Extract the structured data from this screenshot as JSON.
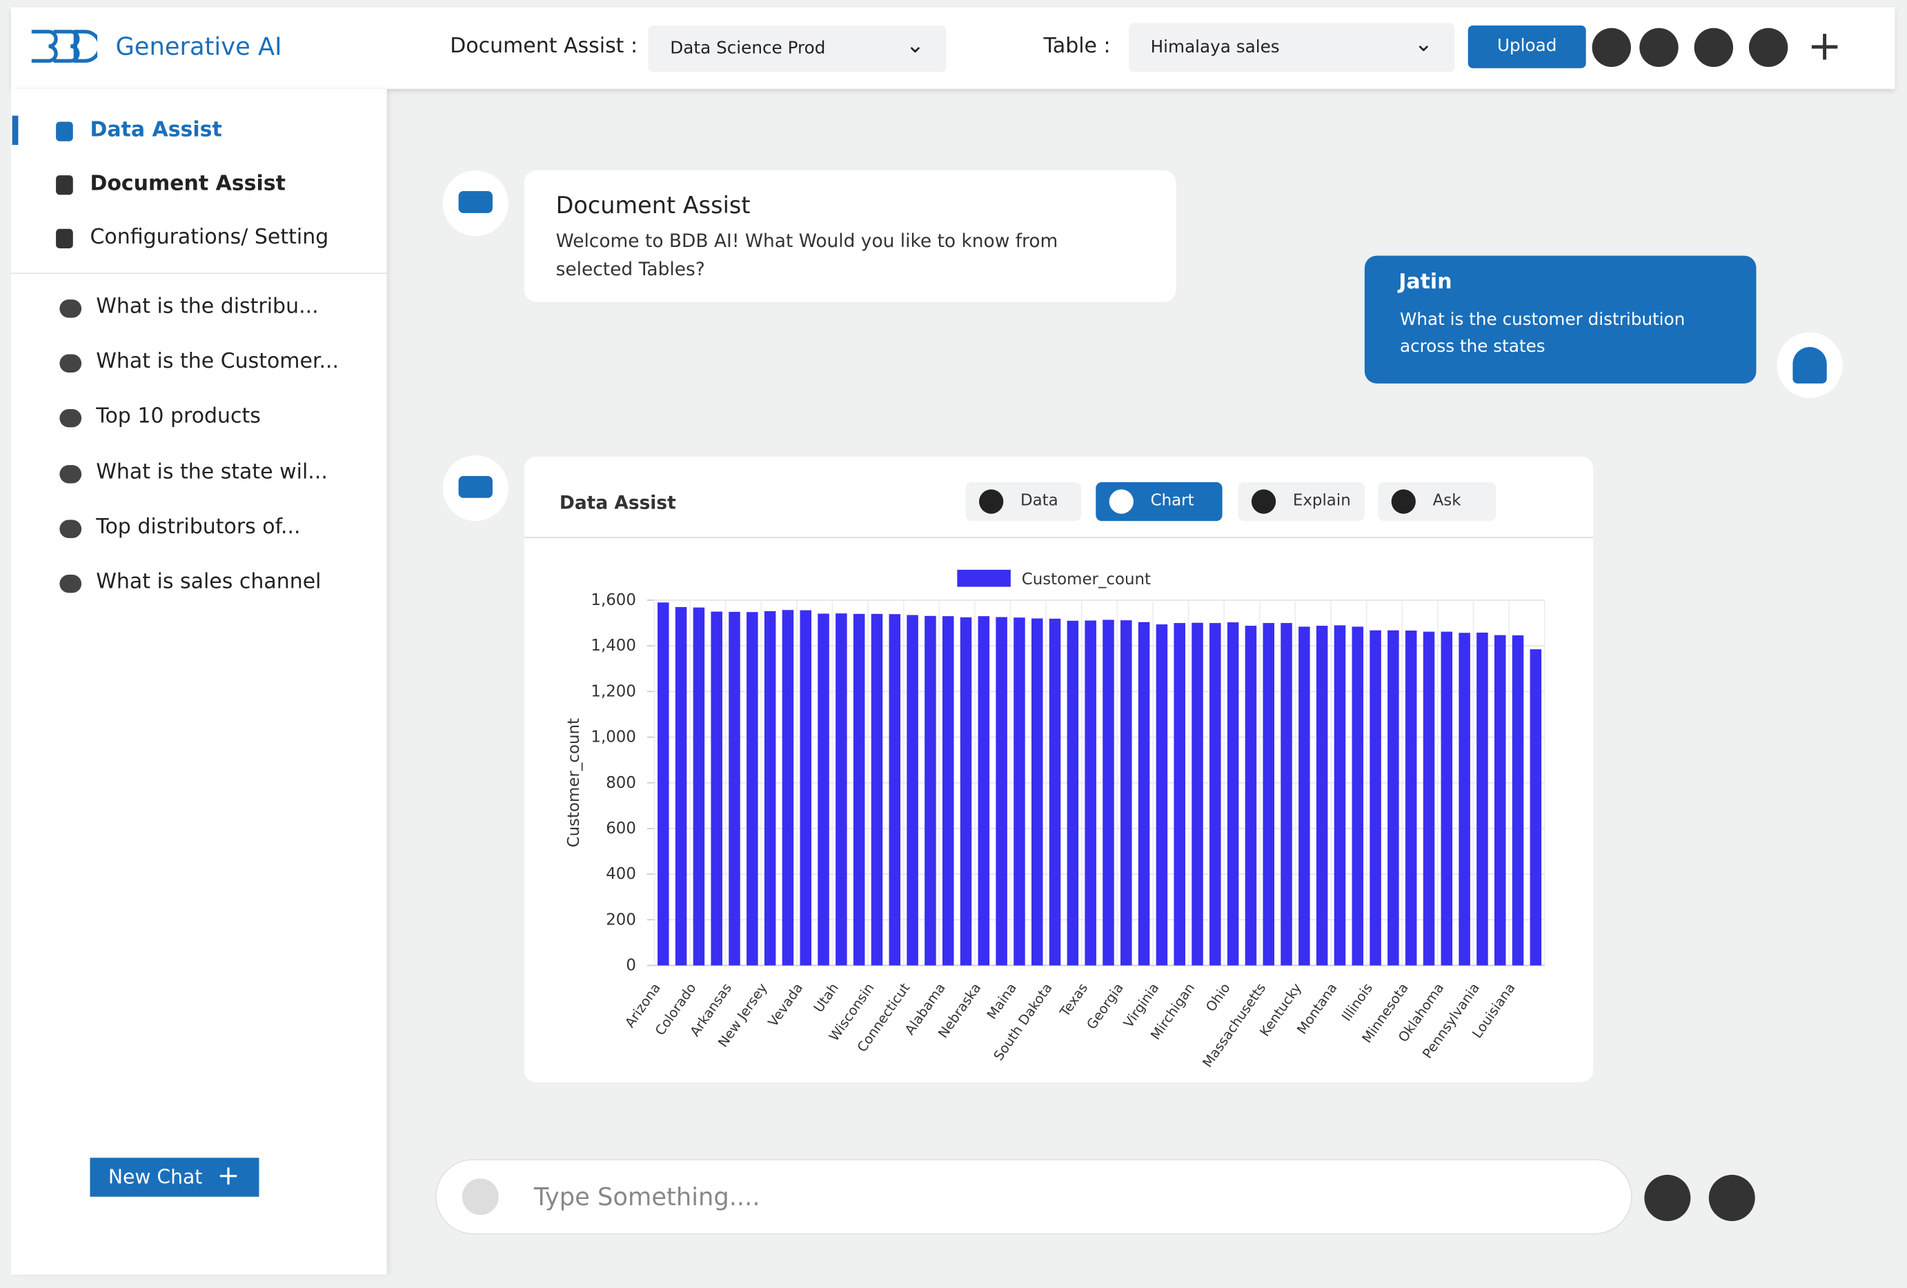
{
  "header": {
    "brand": "Generative AI",
    "document_label": "Document Assist :",
    "document_select": "Data Science Prod",
    "table_label": "Table :",
    "table_select": "Himalaya sales",
    "upload": "Upload"
  },
  "sidebar": {
    "nav": [
      "Data Assist",
      "Document Assist",
      "Configurations/ Setting"
    ],
    "history": [
      "What is the distribu...",
      "What is the Customer...",
      "Top 10 products",
      "What is the state wil...",
      "Top distributors of...",
      "What is sales channel"
    ],
    "new_chat": "New Chat"
  },
  "chat": {
    "bot_title": "Document Assist",
    "bot_text": "Welcome to BDB AI! What Would you like to know from selected Tables?",
    "user_name": "Jatin",
    "user_text": "What is the customer distribution across the states",
    "card_title": "Data Assist",
    "tabs": [
      "Data",
      "Chart",
      "Explain",
      "Ask"
    ],
    "input_placeholder": "Type Something...."
  },
  "chart_data": {
    "type": "bar",
    "y_label": "Customer_count",
    "categories": [
      "Arizona",
      null,
      "Colorado",
      null,
      "Arkansas",
      null,
      "New Jersey",
      null,
      "Vevada",
      null,
      "Utah",
      null,
      "Wisconsin",
      null,
      "Connecticut",
      null,
      "Alabama",
      null,
      "Nebraska",
      null,
      "Maina",
      null,
      "South Dakota",
      null,
      "Texas",
      null,
      "Georgia",
      null,
      "Virginia",
      null,
      "Mirchigan",
      null,
      "Ohio",
      null,
      "Massachusetts",
      null,
      "Kentucky",
      null,
      "Montana",
      null,
      "Illinois",
      null,
      "Minnesota",
      null,
      "Oklahoma",
      null,
      "Pennsylvania",
      null,
      "Louisiana",
      null
    ],
    "series": [
      {
        "name": "Customer_count",
        "color": "#3a2ef2",
        "values": [
          1590,
          1570,
          1568,
          1550,
          1549,
          1548,
          1552,
          1557,
          1556,
          1541,
          1542,
          1540,
          1540,
          1539,
          1535,
          1531,
          1530,
          1525,
          1530,
          1526,
          1524,
          1520,
          1519,
          1510,
          1511,
          1514,
          1512,
          1504,
          1494,
          1500,
          1501,
          1500,
          1503,
          1488,
          1500,
          1500,
          1484,
          1488,
          1490,
          1484,
          1468,
          1468,
          1467,
          1462,
          1462,
          1457,
          1458,
          1447,
          1446,
          1385
        ]
      }
    ],
    "ylim": [
      0,
      1600
    ],
    "yticks": [
      0,
      200,
      400,
      600,
      800,
      {
        "value": 1000,
        "label": "1,000"
      },
      {
        "value": 1200,
        "label": "1,200"
      },
      {
        "value": 1400,
        "label": "1,400"
      },
      {
        "value": 1600,
        "label": "1,600"
      }
    ],
    "grid": true,
    "legend": "top"
  }
}
